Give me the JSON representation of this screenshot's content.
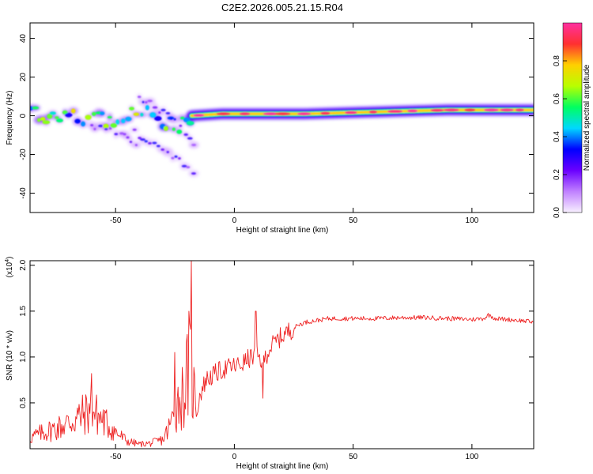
{
  "title": "C2E2.2026.005.21.15.R04",
  "chart_data": [
    {
      "type": "heatmap",
      "name": "spectrogram",
      "xlabel": "Height of straight line (km)",
      "ylabel": "Frequency (Hz)",
      "xlim": [
        -86,
        126
      ],
      "ylim": [
        -50,
        48
      ],
      "xticks": [
        -50,
        0,
        50,
        100
      ],
      "yticks": [
        40,
        20,
        0,
        -20,
        -40
      ],
      "tick_labels_x": [
        "-50",
        "0",
        "50",
        "100"
      ],
      "tick_labels_y": [
        "40",
        "20",
        "0",
        "-20",
        "-40"
      ],
      "colorbar": {
        "label": "Normalized spectral amplitude",
        "range": [
          0,
          1
        ],
        "ticks": [
          0.0,
          0.2,
          0.4,
          0.6,
          0.8
        ],
        "tick_labels": [
          "0.0",
          "0.2",
          "0.4",
          "0.6",
          "0.8"
        ],
        "colors": [
          "#f8f0ff",
          "#c080ff",
          "#6a00ff",
          "#0000ff",
          "#00d8ff",
          "#00ff60",
          "#b8ff00",
          "#ffd000",
          "#ff3030",
          "#ff30a0"
        ]
      },
      "ridges": [
        {
          "x": [
            -86,
            -75,
            -65,
            -55,
            -45,
            -35,
            -25,
            -18
          ],
          "y": [
            2,
            0,
            1,
            -1,
            1,
            -2,
            -4,
            -6
          ],
          "strength": 0.65
        },
        {
          "x": [
            -60,
            -50,
            -40
          ],
          "y": [
            -5,
            -9,
            -14
          ],
          "strength": 0.35
        },
        {
          "x": [
            -42,
            -35,
            -28,
            -22,
            -16
          ],
          "y": [
            -8,
            -13,
            -19,
            -25,
            -31
          ],
          "strength": 0.25
        },
        {
          "x": [
            -40,
            -34,
            -28,
            -22,
            -16
          ],
          "y": [
            8,
            5,
            0,
            -7,
            -15
          ],
          "strength": 0.35
        },
        {
          "x": [
            -18,
            -5,
            10,
            30,
            60,
            90,
            126
          ],
          "y": [
            0,
            1,
            1,
            1,
            2,
            3,
            3
          ],
          "strength": 0.95
        }
      ]
    },
    {
      "type": "line",
      "name": "snr",
      "xlabel": "Height of straight line (km)",
      "ylabel": "SNR (10 * v/v)",
      "multiplier_label": "(x10",
      "multiplier_exp": "4",
      "multiplier_close": ")",
      "xlim": [
        -86,
        126
      ],
      "ylim": [
        0,
        2.05
      ],
      "xticks": [
        -50,
        0,
        50,
        100
      ],
      "yticks": [
        0.5,
        1.0,
        1.5,
        2.0
      ],
      "tick_labels_x": [
        "-50",
        "0",
        "50",
        "100"
      ],
      "tick_labels_y": [
        "0.5",
        "1.0",
        "1.5",
        "2.0"
      ],
      "color": "#ee2222",
      "x": [
        -86,
        -80,
        -75,
        -70,
        -65,
        -60,
        -55,
        -50,
        -45,
        -40,
        -35,
        -30,
        -27,
        -24,
        -21,
        -19,
        -17,
        -15,
        -12,
        -9,
        -6,
        -3,
        0,
        3,
        6,
        9,
        12,
        15,
        18,
        21,
        24,
        27,
        30,
        35,
        40,
        50,
        60,
        70,
        80,
        90,
        100,
        105,
        107,
        110,
        120,
        126
      ],
      "values": [
        0.12,
        0.18,
        0.22,
        0.28,
        0.35,
        0.42,
        0.3,
        0.18,
        0.08,
        0.05,
        0.06,
        0.1,
        0.25,
        0.5,
        0.62,
        0.95,
        0.6,
        0.55,
        0.75,
        0.8,
        0.85,
        0.88,
        0.9,
        0.92,
        0.98,
        1.02,
        0.95,
        1.1,
        1.18,
        1.25,
        1.3,
        1.35,
        1.38,
        1.4,
        1.42,
        1.42,
        1.42,
        1.43,
        1.43,
        1.42,
        1.41,
        1.42,
        1.46,
        1.42,
        1.4,
        1.38
      ],
      "spikes": [
        {
          "x": -60,
          "value": 0.82
        },
        {
          "x": -18,
          "value": 2.05
        },
        {
          "x": -25,
          "value": 1.05
        },
        {
          "x": 9,
          "value": 1.5
        },
        {
          "x": 12,
          "value": 0.55
        }
      ]
    }
  ]
}
